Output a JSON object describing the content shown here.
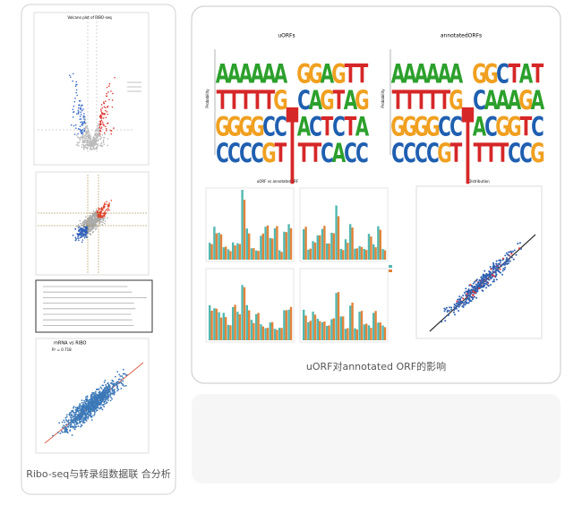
{
  "left_panel": {
    "caption": "Ribo-seq与转录组数据联 合分析",
    "volcano_title": "Volcano plot of RIBO-seq",
    "scatter_title": "mRNA vs RIBO",
    "r2": "R² = 0.718"
  },
  "right_panel": {
    "caption": "uORF对annotated ORF的影响",
    "logos": [
      {
        "title": "uORFs",
        "y_label": "Probability",
        "columns": [
          "ATGC",
          "ATGC",
          "ATGC",
          "ATGC",
          "ATCG",
          "AGCT",
          "T",
          "GCAT",
          "GACT",
          "AGTC",
          "GTCA",
          "TATC",
          "TGAC"
        ]
      },
      {
        "title": "annotatedORFs",
        "y_label": "Probability",
        "columns": [
          "ATGC",
          "ATGC",
          "ATGC",
          "ATGC",
          "ATCG",
          "AGCT",
          "T",
          "GCAT",
          "GACT",
          "CAGT",
          "TAGC",
          "AGTC",
          "TACG"
        ]
      }
    ],
    "bar_title": "uORF vs annotatedORF",
    "scatter_title": "Distribution"
  }
}
